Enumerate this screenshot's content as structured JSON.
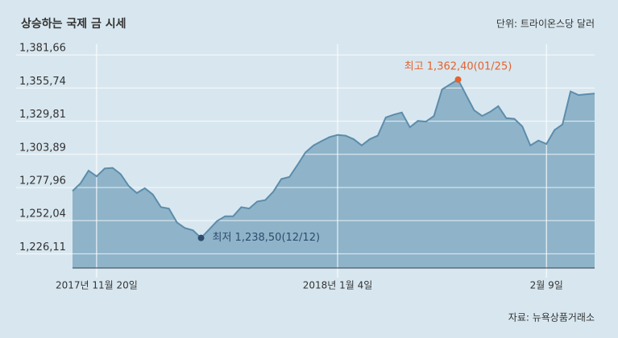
{
  "chart_data": {
    "type": "area",
    "title": "상승하는 국제 금 시세",
    "unit_note": "단위: 트라이온스당 달러",
    "source": "자료: 뉴욕상품거래소",
    "categories": [
      null,
      null,
      null,
      "2017년 11월 20일",
      null,
      null,
      null,
      null,
      null,
      null,
      null,
      null,
      null,
      null,
      null,
      null,
      null,
      null,
      null,
      null,
      null,
      null,
      null,
      null,
      null,
      null,
      null,
      null,
      null,
      null,
      null,
      null,
      null,
      "2018년 1월 4일",
      null,
      null,
      null,
      null,
      null,
      null,
      null,
      null,
      null,
      null,
      null,
      null,
      null,
      null,
      null,
      null,
      null,
      null,
      null,
      null,
      null,
      null,
      null,
      null,
      null,
      "2월 9일",
      null,
      null,
      null,
      null,
      null,
      null
    ],
    "values": [
      1275.2,
      1281.3,
      1291.1,
      1286.7,
      1292.8,
      1293.3,
      1288.4,
      1279.1,
      1273.6,
      1277.4,
      1272.5,
      1262.6,
      1261.5,
      1250.6,
      1246.2,
      1244.5,
      1238.5,
      1245.1,
      1251.7,
      1255.5,
      1255.5,
      1262.6,
      1261.5,
      1267.0,
      1268.1,
      1274.7,
      1284.6,
      1286.2,
      1295.5,
      1305.4,
      1310.9,
      1314.2,
      1317.4,
      1319.1,
      1318.5,
      1315.8,
      1310.9,
      1315.8,
      1318.5,
      1332.8,
      1335.0,
      1336.6,
      1325.1,
      1330.1,
      1329.5,
      1333.9,
      1354.7,
      1358.6,
      1362.4,
      1350.3,
      1338.3,
      1333.9,
      1337.2,
      1341.6,
      1332.2,
      1331.7,
      1325.7,
      1310.9,
      1314.7,
      1312.0,
      1322.9,
      1327.3,
      1353.1,
      1350.3,
      1350.9,
      1351.4
    ],
    "color": "#5d8cab",
    "fill": "#8fb4c9",
    "annotations": {
      "high": "최고 1,362,40(01/25)",
      "high_color": "#e4622f",
      "low": "최저 1,238,50(12/12)",
      "low_color": "#2f4c6e"
    },
    "ylim": [
      1215,
      1390
    ],
    "yticks": [
      {
        "value": 1226.11,
        "label": "1,226,11"
      },
      {
        "value": 1252.04,
        "label": "1,252,04"
      },
      {
        "value": 1277.96,
        "label": "1,277,96"
      },
      {
        "value": 1303.89,
        "label": "1,303,89"
      },
      {
        "value": 1329.81,
        "label": "1,329,81"
      },
      {
        "value": 1355.74,
        "label": "1,355,74"
      },
      {
        "value": 1381.66,
        "label": "1,381,66"
      }
    ],
    "grid": true
  }
}
